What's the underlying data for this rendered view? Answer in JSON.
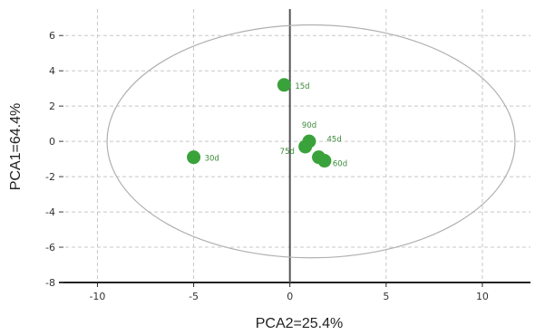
{
  "chart_data": {
    "type": "scatter",
    "title": "",
    "xlabel": "PCA2=25.4%",
    "ylabel": "PCA1=64.4%",
    "xlim": [
      -12,
      12.5
    ],
    "ylim": [
      -8,
      7.5
    ],
    "x_ticks": [
      -10,
      -5,
      0,
      5,
      10
    ],
    "y_ticks": [
      6,
      4,
      2,
      0,
      -2,
      -4,
      -6,
      -8
    ],
    "grid": true,
    "point_color": "#3aa23a",
    "label_color": "#3a8a3a",
    "ellipse": {
      "center": [
        1.1,
        0
      ],
      "rx": 10.6,
      "ry": 6.6,
      "color": "#b0b0b0"
    },
    "points": [
      {
        "label": "15d",
        "x": -0.3,
        "y": 3.2
      },
      {
        "label": "30d",
        "x": -5.0,
        "y": -0.9
      },
      {
        "label": "90d",
        "x": 1.0,
        "y": 0.0
      },
      {
        "label": "75d",
        "x": 0.8,
        "y": -0.3
      },
      {
        "label": "45d",
        "x": 1.5,
        "y": -0.9
      },
      {
        "label": "60d",
        "x": 1.8,
        "y": -1.1
      }
    ]
  }
}
